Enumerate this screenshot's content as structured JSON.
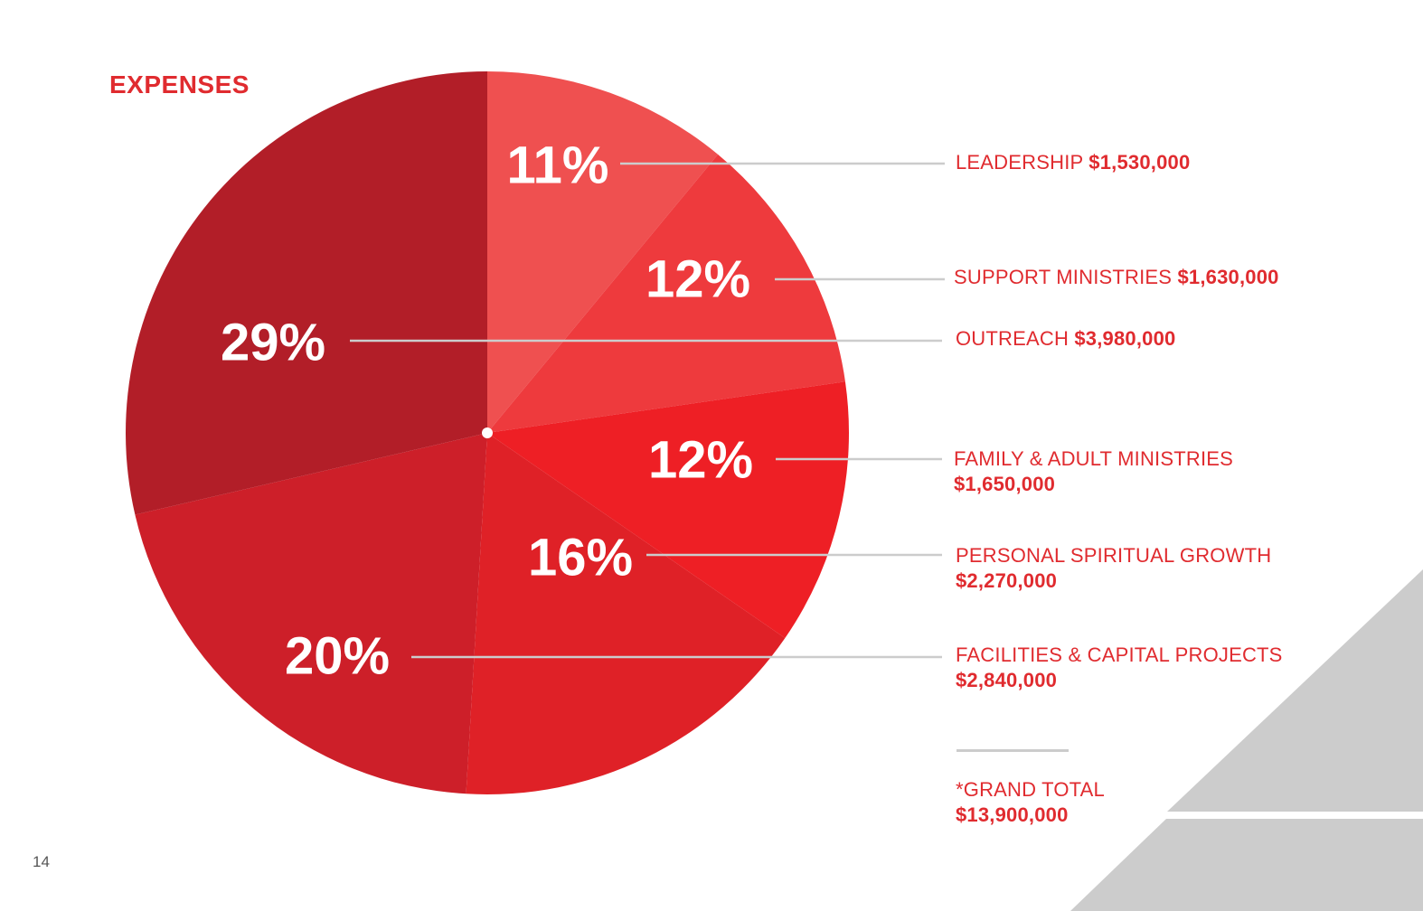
{
  "page": {
    "heading": "EXPENSES",
    "page_number": "14",
    "grand_total_label": "*GRAND TOTAL",
    "grand_total_amount": "$13,900,000"
  },
  "colors": {
    "text_red": "#e02b2f",
    "leader_line": "#cccccc",
    "decor_gray": "#cccccc",
    "label_text": "#ffffff"
  },
  "chart_data": {
    "type": "pie",
    "title": "EXPENSES",
    "start_angle_deg": 0,
    "direction": "clockwise",
    "slices": [
      {
        "name": "LEADERSHIP",
        "amount": "$1,530,000",
        "value": 1530000,
        "percent_label": "11%",
        "color": "#ef5050"
      },
      {
        "name": "SUPPORT MINISTRIES",
        "amount": "$1,630,000",
        "value": 1630000,
        "percent_label": "12%",
        "color": "#ee3a3d"
      },
      {
        "name": "FAMILY & ADULT MINISTRIES",
        "amount": "$1,650,000",
        "value": 1650000,
        "percent_label": "12%",
        "color": "#ee1f25"
      },
      {
        "name": "PERSONAL SPIRITUAL GROWTH",
        "amount": "$2,270,000",
        "value": 2270000,
        "percent_label": "16%",
        "color": "#df2127"
      },
      {
        "name": "FACILITIES & CAPITAL PROJECTS",
        "amount": "$2,840,000",
        "value": 2840000,
        "percent_label": "20%",
        "color": "#cd1f29"
      },
      {
        "name": "OUTREACH",
        "amount": "$3,980,000",
        "value": 3980000,
        "percent_label": "29%",
        "color": "#b21e28"
      }
    ]
  }
}
